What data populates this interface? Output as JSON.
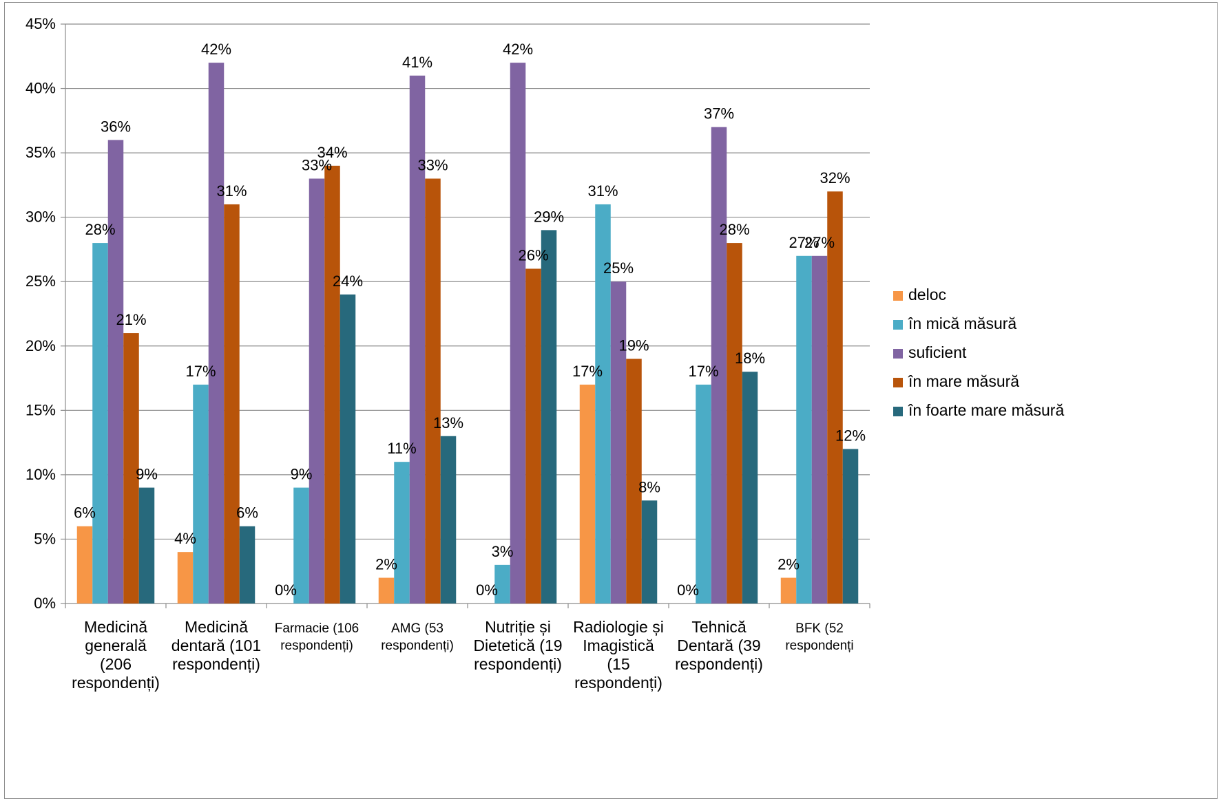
{
  "chart_data": {
    "type": "bar",
    "title": "",
    "xlabel": "",
    "ylabel": "",
    "ylim": [
      0,
      45
    ],
    "yticks": [
      "0%",
      "5%",
      "10%",
      "15%",
      "20%",
      "25%",
      "30%",
      "35%",
      "40%",
      "45%"
    ],
    "grid": "horizontal",
    "legend_position": "right",
    "categories": [
      "Medicină generală (206 respondenți)",
      "Medicină dentară (101 respondenți)",
      "Farmacie (106 respondenți)",
      "AMG (53 respondenți)",
      "Nutriție și Dietetică (19 respondenți)",
      "Radiologie și Imagistică (15 respondenți)",
      "Tehnică Dentară (39 respondenți)",
      "BFK (52 respondenți"
    ],
    "category_lines": [
      [
        "Medicină",
        "generală",
        "(206",
        "respondenți)"
      ],
      [
        "Medicină",
        "dentară (101",
        "respondenți)"
      ],
      [
        "Farmacie (106",
        "respondenți)"
      ],
      [
        "AMG (53",
        "respondenți)"
      ],
      [
        "Nutriție și",
        "Dietetică (19",
        "respondenți)"
      ],
      [
        "Radiologie și",
        "Imagistică",
        "(15",
        "respondenți)"
      ],
      [
        "Tehnică",
        "Dentară (39",
        "respondenți)"
      ],
      [
        "BFK (52",
        "respondenți"
      ]
    ],
    "small_label_categories": [
      2,
      3,
      7
    ],
    "series": [
      {
        "name": "deloc",
        "color": "#F79646",
        "values": [
          6,
          4,
          0,
          2,
          0,
          17,
          0,
          2
        ]
      },
      {
        "name": "în mică măsură",
        "color": "#4BACC6",
        "values": [
          28,
          17,
          9,
          11,
          3,
          31,
          17,
          27
        ]
      },
      {
        "name": "suficient",
        "color": "#8064A2",
        "values": [
          36,
          42,
          33,
          41,
          42,
          25,
          37,
          27
        ]
      },
      {
        "name": "în mare măsură",
        "color": "#B8540A",
        "values": [
          21,
          31,
          34,
          33,
          26,
          19,
          28,
          32
        ]
      },
      {
        "name": "în foarte mare măsură",
        "color": "#27697C",
        "values": [
          9,
          6,
          24,
          13,
          29,
          8,
          18,
          12
        ]
      }
    ]
  }
}
